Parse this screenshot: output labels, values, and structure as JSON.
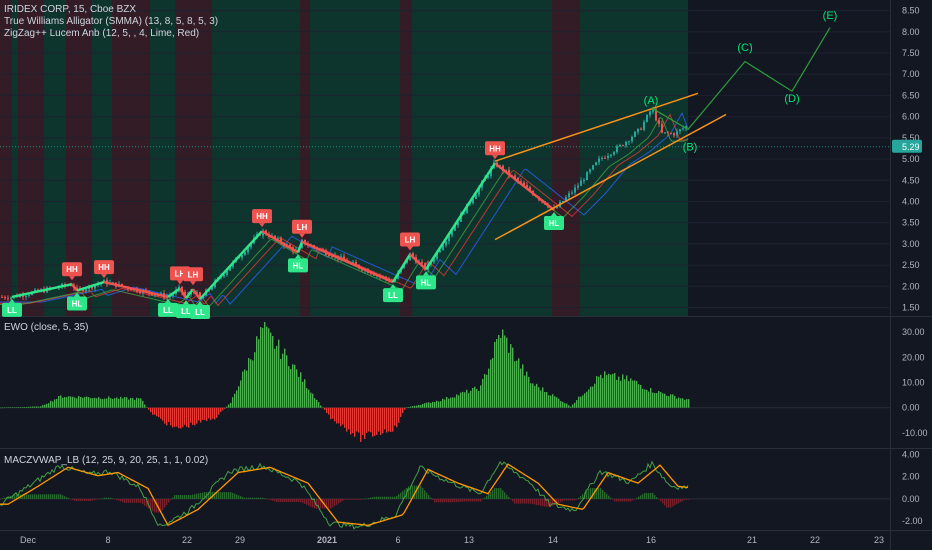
{
  "header": {
    "symbol_line": "IRIDEX CORP, 15, Cboe BZX",
    "indicator_1": "True Williams Alligator (SMMA) (13, 8, 5, 8, 5, 3)",
    "indicator_2": "ZigZag++ Lucem Anb (12, 5, , 4, Lime, Red)"
  },
  "panes": {
    "ewo_title": "EWO (close, 5, 35)",
    "macd_title": "MACZVWAP_LB (12, 25, 9, 20, 25, 1, 1, 0.02)"
  },
  "colors": {
    "background": "#131722",
    "bull": "#26a69a",
    "bear": "#ef5350",
    "zigzag_up": "#2ee68a",
    "zigzag_down": "#ef5350",
    "wave": "#00e676",
    "channel": "#f7931a",
    "ewo_pos": "#4caf50",
    "ewo_neg": "#e53935",
    "price_tag": "#26a69a"
  },
  "chart_data": [
    {
      "type": "line",
      "name": "price",
      "x_ticks": [
        "Dec",
        "8",
        "22",
        "29",
        "2021",
        "6",
        "13",
        "14",
        "16",
        "21",
        "22",
        "23"
      ],
      "y_ticks": [
        1.5,
        2.0,
        2.5,
        3.0,
        3.5,
        4.0,
        4.5,
        5.0,
        5.5,
        6.0,
        6.5,
        7.0,
        7.5,
        8.0,
        8.5
      ],
      "ylim": [
        1.3,
        8.75
      ],
      "last_price": "5.29",
      "zigzag": [
        {
          "x": 0,
          "y": 1.75,
          "label": "LL"
        },
        {
          "x": 1,
          "y": 2.05,
          "label": "HH"
        },
        {
          "x": 2,
          "y": 1.9,
          "label": "HL"
        },
        {
          "x": 3,
          "y": 2.1,
          "label": "HH"
        },
        {
          "x": 4,
          "y": 1.75,
          "label": "LL"
        },
        {
          "x": 5,
          "y": 1.95,
          "label": "LH"
        },
        {
          "x": 6,
          "y": 1.72,
          "label": "LL"
        },
        {
          "x": 7,
          "y": 1.93,
          "label": "LH"
        },
        {
          "x": 8,
          "y": 1.7,
          "label": "LL"
        },
        {
          "x": 9,
          "y": 3.3,
          "label": "HH"
        },
        {
          "x": 10,
          "y": 2.8,
          "label": "HL"
        },
        {
          "x": 11,
          "y": 3.05,
          "label": "LH"
        },
        {
          "x": 12,
          "y": 2.1,
          "label": "LL"
        },
        {
          "x": 13,
          "y": 2.75,
          "label": "LH"
        },
        {
          "x": 14,
          "y": 2.4,
          "label": "HL"
        },
        {
          "x": 15,
          "y": 4.9,
          "label": "HH"
        },
        {
          "x": 16,
          "y": 3.8,
          "label": "HL"
        }
      ],
      "wave_labels": [
        {
          "label": "(A)",
          "y": 6.3
        },
        {
          "label": "(B)",
          "y": 5.2
        },
        {
          "label": "(C)",
          "y": 7.55
        },
        {
          "label": "(D)",
          "y": 6.35
        },
        {
          "label": "(E)",
          "y": 8.3
        }
      ]
    },
    {
      "type": "bar",
      "name": "EWO",
      "y_ticks": [
        30.0,
        20.0,
        10.0,
        0.0,
        -10.0
      ],
      "ylim": [
        -16,
        36
      ]
    },
    {
      "type": "line",
      "name": "MACZVWAP_LB",
      "y_ticks": [
        4.0,
        2.0,
        0.0,
        -2.0
      ],
      "ylim": [
        -2.8,
        4.5
      ]
    }
  ]
}
